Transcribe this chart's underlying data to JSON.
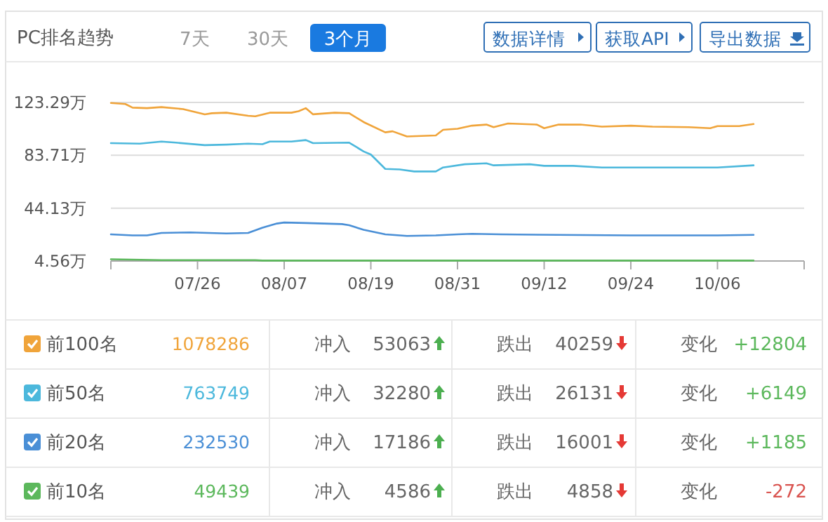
{
  "chart_data": {
    "type": "line",
    "title": "PC排名趋势",
    "xlim": [
      "--07-14",
      "--10-18"
    ],
    "xticks": [
      {
        "value": "--07-14",
        "label": null
      },
      {
        "value": "--07-26",
        "label": "07/26"
      },
      {
        "value": "--08-07",
        "label": "08/07"
      },
      {
        "value": "--08-19",
        "label": "08/19"
      },
      {
        "value": "--08-31",
        "label": "08/31"
      },
      {
        "value": "--09-12",
        "label": "09/12"
      },
      {
        "value": "--09-24",
        "label": "09/24"
      },
      {
        "value": "--10-06",
        "label": "10/06"
      },
      {
        "value": "--10-18",
        "label": null
      }
    ],
    "ylim": [
      4.56,
      123.29
    ],
    "yticks": [
      {
        "value": 4.56,
        "label": "4.56万"
      },
      {
        "value": 44.13,
        "label": "44.13万"
      },
      {
        "value": 83.71,
        "label": "83.71万"
      },
      {
        "value": 123.29,
        "label": "123.29万"
      }
    ],
    "grid": "y",
    "legend": "bottom",
    "marker": "none",
    "line_style": "solid",
    "series": [
      {
        "name": "前100名",
        "color": "#f0a43a",
        "x": [
          "--07-14",
          "--07-16",
          "--07-17",
          "--07-19",
          "--07-21",
          "--07-24",
          "--07-27",
          "--07-28",
          "--07-30",
          "--08-02",
          "--08-03",
          "--08-05",
          "--08-08",
          "--08-09",
          "--08-10",
          "--08-11",
          "--08-14",
          "--08-16",
          "--08-18",
          "--08-21",
          "--08-22",
          "--08-24",
          "--08-28",
          "--08-29",
          "--08-31",
          "--09-02",
          "--09-04",
          "--09-05",
          "--09-07",
          "--09-11",
          "--09-12",
          "--09-14",
          "--09-17",
          "--09-20",
          "--09-24",
          "--09-27",
          "--10-02",
          "--10-05",
          "--10-06",
          "--10-09",
          "--10-11"
        ],
        "values": [
          122.9,
          122.1,
          119.4,
          119.0,
          119.8,
          118.3,
          114.4,
          115.2,
          115.6,
          113.3,
          112.9,
          115.6,
          115.6,
          116.7,
          119.0,
          114.4,
          115.6,
          115.2,
          108.6,
          100.9,
          101.7,
          97.8,
          98.6,
          102.8,
          103.6,
          105.9,
          106.7,
          104.8,
          107.5,
          106.7,
          104.0,
          106.7,
          106.7,
          105.2,
          105.9,
          105.2,
          104.8,
          104.0,
          105.6,
          105.6,
          107.1
        ]
      },
      {
        "name": "前50名",
        "color": "#4cb8dc",
        "x": [
          "--07-14",
          "--07-18",
          "--07-21",
          "--07-23",
          "--07-27",
          "--07-30",
          "--08-02",
          "--08-04",
          "--08-05",
          "--08-08",
          "--08-10",
          "--08-11",
          "--08-16",
          "--08-18",
          "--08-19",
          "--08-21",
          "--08-23",
          "--08-25",
          "--08-28",
          "--08-29",
          "--09-01",
          "--09-04",
          "--09-05",
          "--09-10",
          "--09-12",
          "--09-16",
          "--09-20",
          "--09-28",
          "--10-06",
          "--10-11"
        ],
        "values": [
          92.8,
          92.4,
          94.0,
          93.2,
          91.3,
          91.7,
          92.4,
          92.0,
          94.0,
          94.0,
          95.1,
          92.8,
          93.2,
          86.6,
          84.3,
          73.5,
          73.1,
          71.6,
          71.6,
          74.6,
          77.0,
          77.7,
          76.2,
          77.0,
          75.8,
          75.8,
          74.6,
          74.6,
          74.6,
          76.2
        ]
      },
      {
        "name": "前20名",
        "color": "#4a8fd6",
        "x": [
          "--07-14",
          "--07-17",
          "--07-19",
          "--07-21",
          "--07-25",
          "--07-30",
          "--08-02",
          "--08-04",
          "--08-06",
          "--08-07",
          "--08-10",
          "--08-15",
          "--08-16",
          "--08-18",
          "--08-21",
          "--08-24",
          "--08-28",
          "--08-31",
          "--09-02",
          "--09-06",
          "--09-14",
          "--09-24",
          "--10-06",
          "--10-11"
        ],
        "values": [
          24.5,
          23.7,
          23.7,
          25.6,
          26.0,
          25.2,
          25.6,
          29.5,
          32.6,
          33.4,
          33.0,
          32.2,
          31.4,
          27.9,
          24.5,
          23.3,
          23.7,
          24.5,
          24.9,
          24.5,
          24.1,
          23.7,
          23.7,
          24.1
        ]
      },
      {
        "name": "前10名",
        "color": "#5cb85c",
        "x": [
          "--07-14",
          "--07-21",
          "--08-03",
          "--08-04",
          "--08-31",
          "--09-24",
          "--10-11"
        ],
        "values": [
          5.9,
          5.2,
          5.2,
          4.9,
          4.9,
          4.9,
          4.9
        ]
      }
    ],
    "annotations": [
      "7天",
      "30天",
      "3个月",
      "数据详情",
      "获取API",
      "导出数据",
      "1078286",
      "冲入",
      "53063",
      "跌出",
      "40259",
      "变化",
      "+12804",
      "763749",
      "冲入",
      "32280",
      "跌出",
      "26131",
      "变化",
      "+6149",
      "232530",
      "冲入",
      "17186",
      "跌出",
      "16001",
      "变化",
      "+1185",
      "49439",
      "冲入",
      "4586",
      "跌出",
      "4858",
      "变化",
      "-272"
    ]
  }
}
